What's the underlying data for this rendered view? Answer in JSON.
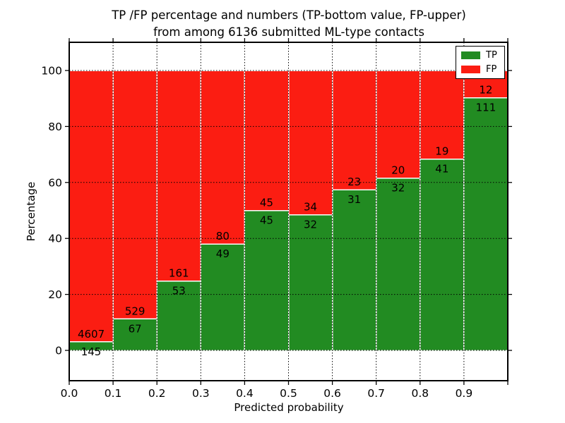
{
  "title": {
    "line1": "TP /FP percentage and numbers (TP-bottom value, FP-upper)",
    "line2": "from among 6136 submitted ML-type contacts"
  },
  "chart_data": {
    "type": "bar",
    "stacked": true,
    "normalized": "each bar normalized to 100% within its bin; labels show raw counts",
    "title": "TP /FP percentage and numbers (TP-bottom value, FP-upper) from among 6136 submitted ML-type contacts",
    "xlabel": "Predicted probability",
    "ylabel": "Percentage",
    "total_contacts": 6136,
    "categories": [
      "0.0-0.1",
      "0.1-0.2",
      "0.2-0.3",
      "0.3-0.4",
      "0.4-0.5",
      "0.5-0.6",
      "0.6-0.7",
      "0.7-0.8",
      "0.8-0.9",
      "0.9-1.0"
    ],
    "series": [
      {
        "name": "TP",
        "color": "#228b22",
        "values": [
          145,
          67,
          53,
          49,
          45,
          32,
          31,
          32,
          41,
          111
        ]
      },
      {
        "name": "FP",
        "color": "#fb1d12",
        "values": [
          4607,
          529,
          161,
          80,
          45,
          34,
          23,
          20,
          19,
          12
        ]
      }
    ],
    "tp_percent": [
      3.05,
      11.24,
      24.77,
      37.98,
      50.0,
      48.48,
      57.41,
      61.54,
      68.33,
      90.24
    ],
    "x_tick_labels": [
      "0.0",
      "0.1",
      "0.2",
      "0.3",
      "0.4",
      "0.5",
      "0.6",
      "0.7",
      "0.8",
      "0.9"
    ],
    "y_ticks": [
      0,
      20,
      40,
      60,
      80,
      100
    ],
    "xlim": [
      0.0,
      1.0
    ],
    "ylim": [
      -10.8,
      110.1
    ],
    "grid": "dotted black, on top of bars",
    "bar_edge_color": "#ffffff",
    "legend_position": "upper right"
  },
  "legend": {
    "items": [
      {
        "label": "TP",
        "color": "#228b22"
      },
      {
        "label": "FP",
        "color": "#fb1d12"
      }
    ]
  }
}
